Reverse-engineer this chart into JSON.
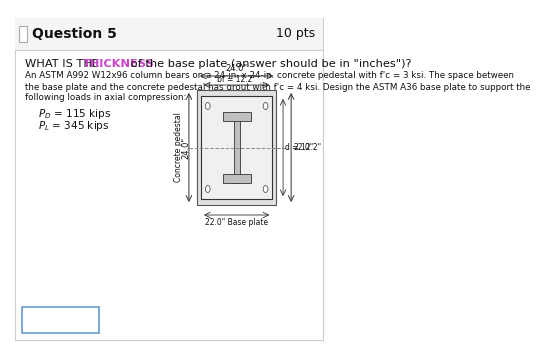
{
  "bg_color": "#ffffff",
  "outer_border_color": "#cccccc",
  "header_bg": "#f5f5f5",
  "header_text": "Question 5",
  "header_pts": "10 pts",
  "highlight_color": "#cc44cc",
  "body_fontsize": 7.5,
  "answer_box_color": "#6699cc",
  "load1_label": "P_D",
  "load1_val": " = 115 kips",
  "load2_label": "P_L",
  "load2_val": " = 345 kips",
  "concrete_label": "Concrete pedestal",
  "dim_top": "24.0\"",
  "dim_bf": "bf = 12.2\"",
  "dim_left": "24.0\"",
  "dim_d": "d = 12.2\"",
  "dim_right": "22.0\"",
  "dim_bottom": "22.0\" Base plate",
  "body_line1": "An ASTM A992 W12x96 column bears on a 24-in. x 24-in. concrete pedestal with f'c = 3 ksi. The space between",
  "body_line2": "the base plate and the concrete pedestal has grout with f'c = 4 ksi. Design the ASTM A36 base plate to support the",
  "body_line3": "following loads in axial compression:"
}
